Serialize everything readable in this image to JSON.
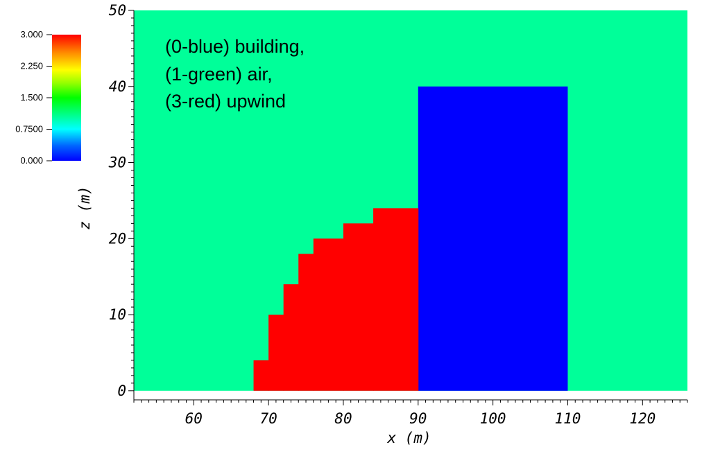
{
  "chart_data": {
    "type": "heatmap",
    "title": "",
    "xlabel": "x (m)",
    "ylabel": "z (m)",
    "xlim": [
      52,
      126
    ],
    "ylim": [
      -1.2,
      50
    ],
    "x_ticks": [
      60,
      70,
      80,
      90,
      100,
      110,
      120
    ],
    "y_ticks": [
      0,
      10,
      20,
      30,
      40,
      50
    ],
    "grid": false,
    "background_value": 1,
    "regions": [
      {
        "name": "building",
        "value": 0,
        "color": "#0000ff",
        "x_start": 90,
        "x_end": 110,
        "z_start": 0,
        "z_end": 40
      },
      {
        "name": "upwind",
        "value": 3,
        "color": "#ff0000",
        "profile": [
          {
            "x_start": 68,
            "x_end": 70,
            "z_top": 4
          },
          {
            "x_start": 70,
            "x_end": 72,
            "z_top": 10
          },
          {
            "x_start": 72,
            "x_end": 74,
            "z_top": 14
          },
          {
            "x_start": 74,
            "x_end": 76,
            "z_top": 18
          },
          {
            "x_start": 76,
            "x_end": 80,
            "z_top": 20
          },
          {
            "x_start": 80,
            "x_end": 84,
            "z_top": 22
          },
          {
            "x_start": 84,
            "x_end": 90,
            "z_top": 24
          }
        ]
      }
    ],
    "colorbar": {
      "range": [
        0,
        3
      ],
      "tick_labels": [
        "3.000",
        "2.250",
        "1.500",
        "0.7500",
        "0.000"
      ],
      "placement": "top-left"
    },
    "annotation": [
      "(0-blue) building,",
      "(1-green) air,",
      "(3-red) upwind"
    ]
  },
  "colors": {
    "air": "#00ff99",
    "building": "#0000ff",
    "upwind": "#ff0000",
    "text": "#000000"
  }
}
